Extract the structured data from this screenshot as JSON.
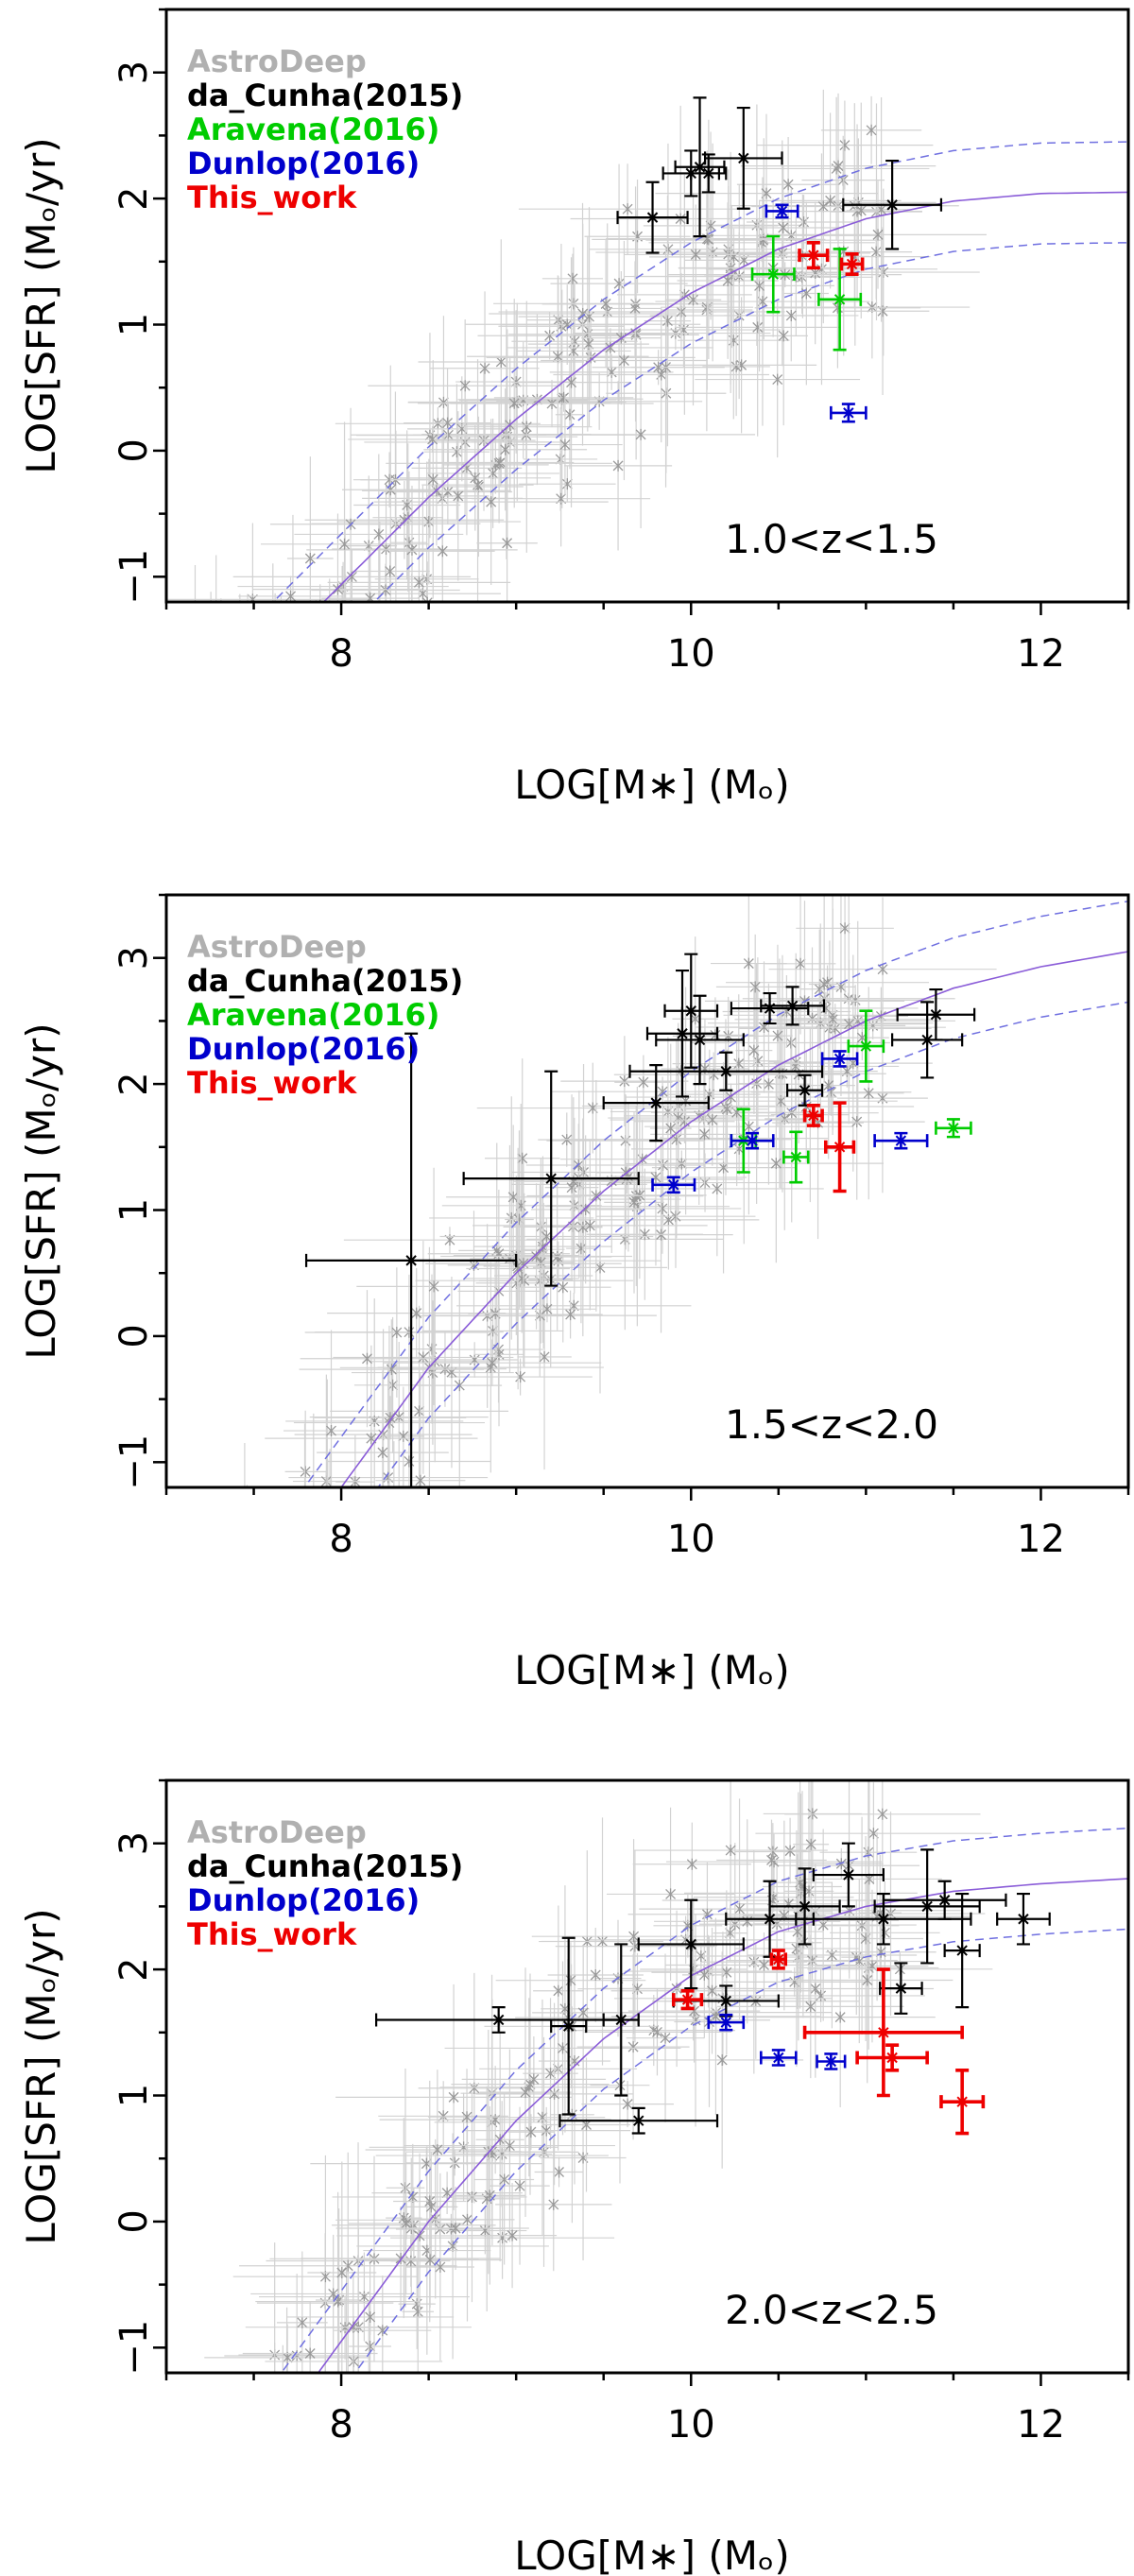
{
  "chart_data": [
    {
      "type": "scatter",
      "panel_label": "1.0<z<1.5",
      "xlabel": "LOG[M∗] (Mₒ)",
      "ylabel": "LOG[SFR] (Mₒ/yr)",
      "xlim": [
        7.0,
        12.5
      ],
      "ylim": [
        -1.2,
        3.5
      ],
      "xticks": [
        "8",
        "10",
        "12"
      ],
      "yticks": [
        "−1",
        "0",
        "1",
        "2",
        "3"
      ],
      "legend": [
        {
          "name": "AstroDeep",
          "color": "#b0b0b0"
        },
        {
          "name": "da_Cunha(2015)",
          "color": "#000000"
        },
        {
          "name": "Aravena(2016)",
          "color": "#00cc00"
        },
        {
          "name": "Dunlop(2016)",
          "color": "#0000cc"
        },
        {
          "name": "This_work",
          "color": "#ee0000"
        }
      ],
      "relation": {
        "points": [
          [
            7.9,
            -1.2
          ],
          [
            8.5,
            -0.37
          ],
          [
            9.0,
            0.25
          ],
          [
            9.5,
            0.8
          ],
          [
            10.0,
            1.25
          ],
          [
            10.5,
            1.6
          ],
          [
            11.0,
            1.84
          ],
          [
            11.5,
            1.98
          ],
          [
            12.0,
            2.04
          ],
          [
            12.5,
            2.05
          ]
        ],
        "scatter": 0.4
      },
      "series": [
        {
          "name": "AstroDeep",
          "color": "#9a9a9a",
          "scatter_cloud": {
            "n": 230,
            "seed": 11,
            "xrange": [
              7.0,
              11.1
            ],
            "offset": -0.05,
            "spread": 0.6
          }
        },
        {
          "name": "da_Cunha(2015)",
          "color": "#000000",
          "points": [
            {
              "x": 9.78,
              "y": 1.85,
              "xerr": 0.2,
              "yerr": 0.28
            },
            {
              "x": 10.0,
              "y": 2.2,
              "xerr": 0.16,
              "yerr": 0.18
            },
            {
              "x": 10.05,
              "y": 2.25,
              "xerr": 0.14,
              "yerr": 0.55
            },
            {
              "x": 10.1,
              "y": 2.2,
              "xerr": 0.1,
              "yerr": 0.15
            },
            {
              "x": 10.3,
              "y": 2.32,
              "xerr": 0.22,
              "yerr": 0.4
            },
            {
              "x": 11.15,
              "y": 1.95,
              "xerr": 0.28,
              "yerr": 0.35
            }
          ]
        },
        {
          "name": "Aravena(2016)",
          "color": "#00cc00",
          "points": [
            {
              "x": 10.47,
              "y": 1.4,
              "xerr": 0.12,
              "yerr": 0.3
            },
            {
              "x": 10.85,
              "y": 1.2,
              "xerr": 0.12,
              "yerr": 0.4
            }
          ]
        },
        {
          "name": "Dunlop(2016)",
          "color": "#0000cc",
          "points": [
            {
              "x": 10.52,
              "y": 1.9,
              "xerr": 0.09,
              "yerr": 0.05
            },
            {
              "x": 10.9,
              "y": 0.3,
              "xerr": 0.1,
              "yerr": 0.07
            }
          ]
        },
        {
          "name": "This_work",
          "color": "#ee0000",
          "points": [
            {
              "x": 10.7,
              "y": 1.55,
              "xerr": 0.08,
              "yerr": 0.1
            },
            {
              "x": 10.92,
              "y": 1.48,
              "xerr": 0.06,
              "yerr": 0.08
            }
          ]
        }
      ]
    },
    {
      "type": "scatter",
      "panel_label": "1.5<z<2.0",
      "xlabel": "LOG[M∗] (Mₒ)",
      "ylabel": "LOG[SFR] (Mₒ/yr)",
      "xlim": [
        7.0,
        12.5
      ],
      "ylim": [
        -1.2,
        3.5
      ],
      "xticks": [
        "8",
        "10",
        "12"
      ],
      "yticks": [
        "−1",
        "0",
        "1",
        "2",
        "3"
      ],
      "legend": [
        {
          "name": "AstroDeep",
          "color": "#b0b0b0"
        },
        {
          "name": "da_Cunha(2015)",
          "color": "#000000"
        },
        {
          "name": "Aravena(2016)",
          "color": "#00cc00"
        },
        {
          "name": "Dunlop(2016)",
          "color": "#0000cc"
        },
        {
          "name": "This_work",
          "color": "#ee0000"
        }
      ],
      "relation": {
        "points": [
          [
            8.0,
            -1.2
          ],
          [
            8.5,
            -0.25
          ],
          [
            9.0,
            0.5
          ],
          [
            9.5,
            1.15
          ],
          [
            10.0,
            1.7
          ],
          [
            10.5,
            2.15
          ],
          [
            11.0,
            2.5
          ],
          [
            11.5,
            2.76
          ],
          [
            12.0,
            2.93
          ],
          [
            12.5,
            3.05
          ]
        ],
        "scatter": 0.4
      },
      "series": [
        {
          "name": "AstroDeep",
          "color": "#9a9a9a",
          "scatter_cloud": {
            "n": 230,
            "seed": 23,
            "xrange": [
              7.0,
              11.1
            ],
            "offset": 0.0,
            "spread": 0.6
          }
        },
        {
          "name": "da_Cunha(2015)",
          "color": "#000000",
          "points": [
            {
              "x": 8.4,
              "y": 0.6,
              "xerr": 0.6,
              "yerr": 1.8
            },
            {
              "x": 9.2,
              "y": 1.25,
              "xerr": 0.5,
              "yerr": 0.85
            },
            {
              "x": 9.8,
              "y": 1.85,
              "xerr": 0.3,
              "yerr": 0.3
            },
            {
              "x": 9.95,
              "y": 2.4,
              "xerr": 0.2,
              "yerr": 0.5
            },
            {
              "x": 10.05,
              "y": 2.35,
              "xerr": 0.25,
              "yerr": 0.35
            },
            {
              "x": 10.0,
              "y": 2.58,
              "xerr": 0.15,
              "yerr": 0.45
            },
            {
              "x": 10.2,
              "y": 2.1,
              "xerr": 0.55,
              "yerr": 0.15
            },
            {
              "x": 10.45,
              "y": 2.6,
              "xerr": 0.22,
              "yerr": 0.12
            },
            {
              "x": 10.58,
              "y": 2.62,
              "xerr": 0.18,
              "yerr": 0.15
            },
            {
              "x": 10.65,
              "y": 1.95,
              "xerr": 0.1,
              "yerr": 0.12
            },
            {
              "x": 11.35,
              "y": 2.35,
              "xerr": 0.2,
              "yerr": 0.3
            },
            {
              "x": 11.4,
              "y": 2.55,
              "xerr": 0.22,
              "yerr": 0.2
            }
          ]
        },
        {
          "name": "Aravena(2016)",
          "color": "#00cc00",
          "points": [
            {
              "x": 10.3,
              "y": 1.55,
              "xerr": 0.07,
              "yerr": 0.25
            },
            {
              "x": 10.6,
              "y": 1.42,
              "xerr": 0.07,
              "yerr": 0.2
            },
            {
              "x": 11.0,
              "y": 2.3,
              "xerr": 0.1,
              "yerr": 0.28
            },
            {
              "x": 11.5,
              "y": 1.65,
              "xerr": 0.1,
              "yerr": 0.07
            }
          ]
        },
        {
          "name": "Dunlop(2016)",
          "color": "#0000cc",
          "points": [
            {
              "x": 9.9,
              "y": 1.2,
              "xerr": 0.12,
              "yerr": 0.06
            },
            {
              "x": 10.35,
              "y": 1.55,
              "xerr": 0.12,
              "yerr": 0.06
            },
            {
              "x": 10.85,
              "y": 2.2,
              "xerr": 0.1,
              "yerr": 0.06
            },
            {
              "x": 11.2,
              "y": 1.55,
              "xerr": 0.15,
              "yerr": 0.06
            }
          ]
        },
        {
          "name": "This_work",
          "color": "#ee0000",
          "points": [
            {
              "x": 10.7,
              "y": 1.75,
              "xerr": 0.05,
              "yerr": 0.08
            },
            {
              "x": 10.85,
              "y": 1.5,
              "xerr": 0.08,
              "yerr": 0.35
            }
          ]
        }
      ]
    },
    {
      "type": "scatter",
      "panel_label": "2.0<z<2.5",
      "xlabel": "LOG[M∗] (Mₒ)",
      "ylabel": "LOG[SFR] (Mₒ/yr)",
      "xlim": [
        7.0,
        12.5
      ],
      "ylim": [
        -1.2,
        3.5
      ],
      "xticks": [
        "8",
        "10",
        "12"
      ],
      "yticks": [
        "−1",
        "0",
        "1",
        "2",
        "3"
      ],
      "legend": [
        {
          "name": "AstroDeep",
          "color": "#b0b0b0"
        },
        {
          "name": "da_Cunha(2015)",
          "color": "#000000"
        },
        {
          "name": "Dunlop(2016)",
          "color": "#0000cc"
        },
        {
          "name": "This_work",
          "color": "#ee0000"
        }
      ],
      "relation": {
        "points": [
          [
            8.0,
            -0.95
          ],
          [
            8.5,
            0.0
          ],
          [
            9.0,
            0.8
          ],
          [
            9.5,
            1.45
          ],
          [
            10.0,
            1.95
          ],
          [
            10.5,
            2.3
          ],
          [
            11.0,
            2.5
          ],
          [
            11.5,
            2.62
          ],
          [
            12.0,
            2.68
          ],
          [
            12.5,
            2.72
          ]
        ],
        "scatter": 0.4
      },
      "series": [
        {
          "name": "AstroDeep",
          "color": "#9a9a9a",
          "scatter_cloud": {
            "n": 200,
            "seed": 37,
            "xrange": [
              7.2,
              11.2
            ],
            "offset": 0.0,
            "spread": 0.6
          }
        },
        {
          "name": "da_Cunha(2015)",
          "color": "#000000",
          "points": [
            {
              "x": 8.9,
              "y": 1.6,
              "xerr": 0.7,
              "yerr": 0.1
            },
            {
              "x": 9.3,
              "y": 1.55,
              "xerr": 0.1,
              "yerr": 0.7
            },
            {
              "x": 9.6,
              "y": 1.6,
              "xerr": 0.1,
              "yerr": 0.6
            },
            {
              "x": 9.7,
              "y": 0.8,
              "xerr": 0.45,
              "yerr": 0.1
            },
            {
              "x": 10.0,
              "y": 2.2,
              "xerr": 0.3,
              "yerr": 0.35
            },
            {
              "x": 10.2,
              "y": 1.75,
              "xerr": 0.3,
              "yerr": 0.12
            },
            {
              "x": 10.45,
              "y": 2.4,
              "xerr": 0.25,
              "yerr": 0.3
            },
            {
              "x": 10.65,
              "y": 2.5,
              "xerr": 0.2,
              "yerr": 0.3
            },
            {
              "x": 10.9,
              "y": 2.75,
              "xerr": 0.2,
              "yerr": 0.25
            },
            {
              "x": 11.1,
              "y": 2.4,
              "xerr": 0.5,
              "yerr": 0.2
            },
            {
              "x": 11.2,
              "y": 1.85,
              "xerr": 0.12,
              "yerr": 0.2
            },
            {
              "x": 11.35,
              "y": 2.5,
              "xerr": 0.3,
              "yerr": 0.45
            },
            {
              "x": 11.45,
              "y": 2.55,
              "xerr": 0.35,
              "yerr": 0.15
            },
            {
              "x": 11.55,
              "y": 2.15,
              "xerr": 0.1,
              "yerr": 0.45
            },
            {
              "x": 11.9,
              "y": 2.4,
              "xerr": 0.15,
              "yerr": 0.2
            }
          ]
        },
        {
          "name": "Dunlop(2016)",
          "color": "#0000cc",
          "points": [
            {
              "x": 10.2,
              "y": 1.58,
              "xerr": 0.1,
              "yerr": 0.06
            },
            {
              "x": 10.5,
              "y": 1.3,
              "xerr": 0.1,
              "yerr": 0.06
            },
            {
              "x": 10.8,
              "y": 1.27,
              "xerr": 0.08,
              "yerr": 0.06
            }
          ]
        },
        {
          "name": "This_work",
          "color": "#ee0000",
          "points": [
            {
              "x": 10.5,
              "y": 2.08,
              "xerr": 0.04,
              "yerr": 0.07
            },
            {
              "x": 9.98,
              "y": 1.76,
              "xerr": 0.08,
              "yerr": 0.07
            },
            {
              "x": 11.1,
              "y": 1.5,
              "xerr": 0.45,
              "yerr": 0.5
            },
            {
              "x": 11.15,
              "y": 1.3,
              "xerr": 0.2,
              "yerr": 0.1
            },
            {
              "x": 11.55,
              "y": 0.95,
              "xerr": 0.12,
              "yerr": 0.25
            }
          ]
        }
      ]
    }
  ]
}
